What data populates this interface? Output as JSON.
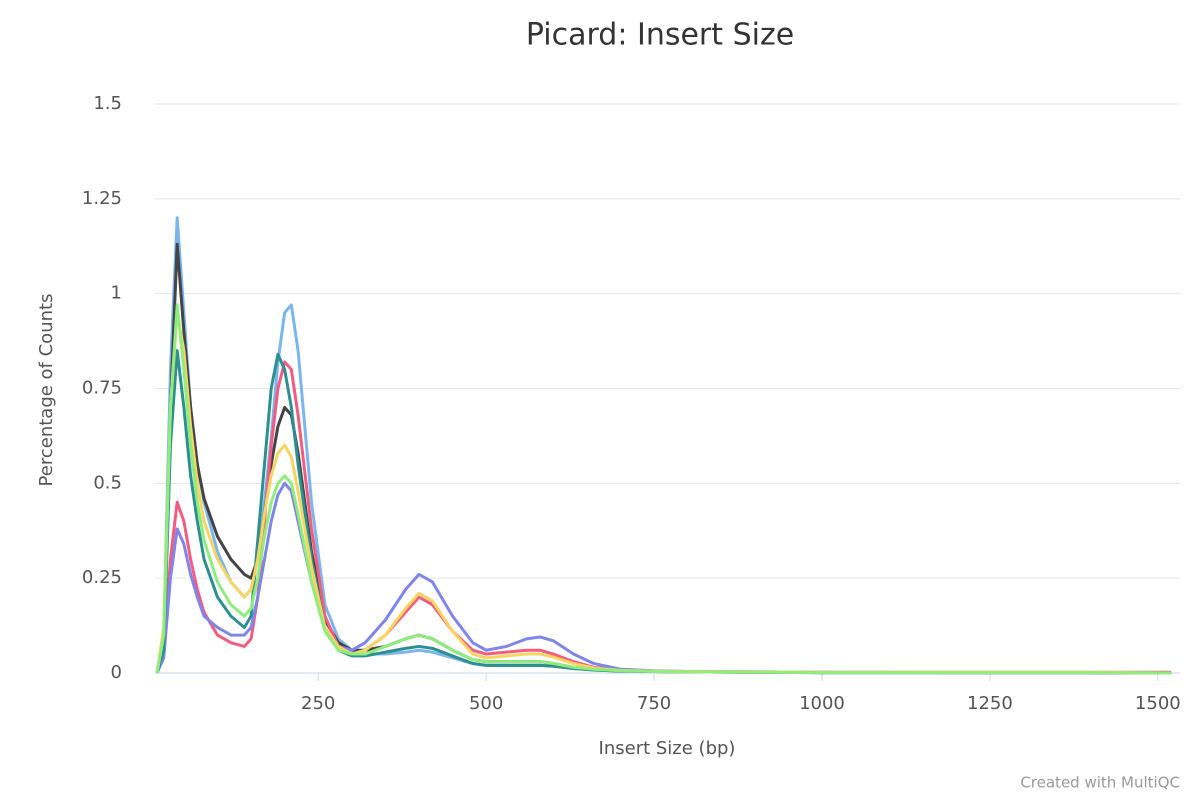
{
  "chart_data": {
    "type": "line",
    "title": "Picard: Insert Size",
    "xlabel": "Insert Size (bp)",
    "ylabel": "Percentage of Counts",
    "credit": "Created with MultiQC",
    "x": [
      10,
      20,
      30,
      40,
      50,
      60,
      70,
      80,
      100,
      120,
      140,
      150,
      160,
      170,
      180,
      190,
      200,
      210,
      220,
      240,
      260,
      280,
      300,
      320,
      350,
      380,
      400,
      420,
      450,
      480,
      500,
      530,
      560,
      580,
      600,
      630,
      660,
      700,
      750,
      800,
      900,
      1000,
      1200,
      1400,
      1520
    ],
    "series": [
      {
        "color": "#7cb5ec",
        "values": [
          0,
          0.1,
          0.8,
          1.2,
          0.95,
          0.7,
          0.55,
          0.45,
          0.32,
          0.24,
          0.2,
          0.22,
          0.3,
          0.45,
          0.62,
          0.82,
          0.95,
          0.97,
          0.85,
          0.45,
          0.18,
          0.09,
          0.06,
          0.05,
          0.05,
          0.055,
          0.06,
          0.055,
          0.04,
          0.025,
          0.02,
          0.02,
          0.02,
          0.02,
          0.018,
          0.012,
          0.008,
          0.005,
          0.004,
          0.003,
          0.002,
          0.001,
          0.001,
          0.001,
          0
        ]
      },
      {
        "color": "#434348",
        "values": [
          0,
          0.08,
          0.7,
          1.13,
          0.9,
          0.7,
          0.55,
          0.46,
          0.36,
          0.3,
          0.26,
          0.25,
          0.3,
          0.42,
          0.55,
          0.65,
          0.7,
          0.68,
          0.58,
          0.32,
          0.14,
          0.08,
          0.06,
          0.06,
          0.07,
          0.09,
          0.1,
          0.09,
          0.06,
          0.035,
          0.03,
          0.03,
          0.03,
          0.03,
          0.025,
          0.015,
          0.01,
          0.006,
          0.004,
          0.003,
          0.002,
          0.001,
          0.001,
          0.001,
          0
        ]
      },
      {
        "color": "#f15c80",
        "values": [
          0,
          0.05,
          0.3,
          0.45,
          0.4,
          0.3,
          0.22,
          0.16,
          0.1,
          0.08,
          0.07,
          0.09,
          0.2,
          0.4,
          0.6,
          0.75,
          0.82,
          0.8,
          0.68,
          0.38,
          0.15,
          0.07,
          0.05,
          0.06,
          0.1,
          0.16,
          0.2,
          0.18,
          0.11,
          0.06,
          0.05,
          0.055,
          0.06,
          0.06,
          0.05,
          0.03,
          0.015,
          0.008,
          0.005,
          0.004,
          0.003,
          0.002,
          0.002,
          0.002,
          0.002
        ]
      },
      {
        "color": "#8085e9",
        "values": [
          0,
          0.04,
          0.25,
          0.38,
          0.34,
          0.26,
          0.2,
          0.15,
          0.12,
          0.1,
          0.1,
          0.12,
          0.2,
          0.3,
          0.4,
          0.47,
          0.5,
          0.48,
          0.4,
          0.24,
          0.12,
          0.07,
          0.06,
          0.08,
          0.14,
          0.22,
          0.26,
          0.24,
          0.15,
          0.08,
          0.06,
          0.07,
          0.09,
          0.095,
          0.085,
          0.05,
          0.025,
          0.01,
          0.006,
          0.004,
          0.003,
          0.002,
          0.001,
          0.001,
          0
        ]
      },
      {
        "color": "#2b908f",
        "values": [
          0,
          0.06,
          0.6,
          0.85,
          0.7,
          0.52,
          0.4,
          0.3,
          0.2,
          0.15,
          0.12,
          0.15,
          0.35,
          0.55,
          0.75,
          0.84,
          0.8,
          0.7,
          0.55,
          0.3,
          0.12,
          0.06,
          0.045,
          0.045,
          0.055,
          0.065,
          0.07,
          0.065,
          0.045,
          0.025,
          0.02,
          0.02,
          0.02,
          0.02,
          0.018,
          0.012,
          0.008,
          0.005,
          0.004,
          0.003,
          0.002,
          0.001,
          0.001,
          0.001,
          0
        ]
      },
      {
        "color": "#f7d560",
        "values": [
          0,
          0.12,
          0.7,
          0.95,
          0.85,
          0.65,
          0.5,
          0.4,
          0.3,
          0.24,
          0.2,
          0.22,
          0.3,
          0.42,
          0.52,
          0.58,
          0.6,
          0.57,
          0.48,
          0.28,
          0.12,
          0.07,
          0.05,
          0.06,
          0.1,
          0.17,
          0.21,
          0.19,
          0.11,
          0.05,
          0.04,
          0.045,
          0.05,
          0.05,
          0.042,
          0.025,
          0.013,
          0.007,
          0.005,
          0.004,
          0.003,
          0.002,
          0.002,
          0.002,
          0
        ]
      },
      {
        "color": "#90ed7d",
        "values": [
          0,
          0.1,
          0.7,
          0.97,
          0.8,
          0.6,
          0.45,
          0.35,
          0.24,
          0.18,
          0.15,
          0.17,
          0.25,
          0.36,
          0.45,
          0.5,
          0.52,
          0.5,
          0.42,
          0.24,
          0.11,
          0.06,
          0.05,
          0.05,
          0.07,
          0.09,
          0.1,
          0.09,
          0.06,
          0.035,
          0.03,
          0.03,
          0.03,
          0.03,
          0.025,
          0.015,
          0.01,
          0.006,
          0.004,
          0.003,
          0.002,
          0.001,
          0.001,
          0.001,
          0
        ]
      }
    ],
    "xlim": [
      7,
      1533
    ],
    "xticks": [
      250,
      500,
      750,
      1000,
      1250,
      1500
    ],
    "ylim": [
      0,
      1.5
    ],
    "yticks": [
      0,
      0.25,
      0.5,
      0.75,
      1,
      1.25,
      1.5
    ],
    "grid": true
  }
}
